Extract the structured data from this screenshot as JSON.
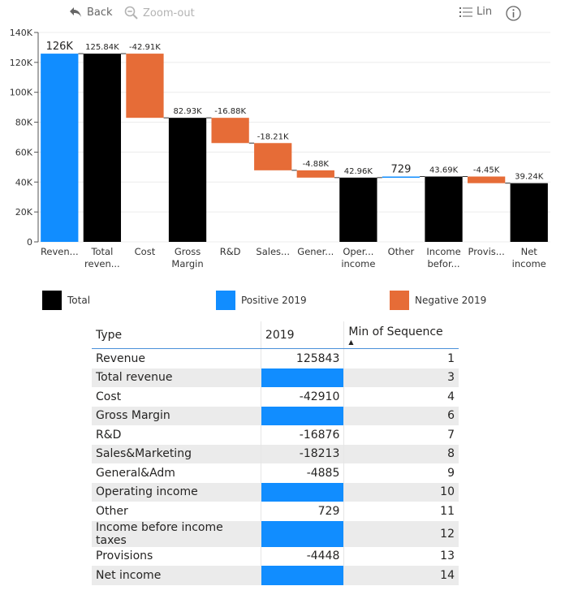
{
  "toolbar": {
    "back_label": "Back",
    "zoom_out_label": "Zoom-out",
    "scale_label": "Lin"
  },
  "chart_data": {
    "type": "bar",
    "subtype": "waterfall",
    "categories": [
      "Reven...",
      "Total reven...",
      "Cost",
      "Gross Margin",
      "R&D",
      "Sales...",
      "Gener...",
      "Oper... income",
      "Other",
      "Income befor...",
      "Provis...",
      "Net income"
    ],
    "category_lines": [
      [
        "Reven..."
      ],
      [
        "Total",
        "reven..."
      ],
      [
        "Cost"
      ],
      [
        "Gross",
        "Margin"
      ],
      [
        "R&D"
      ],
      [
        "Sales..."
      ],
      [
        "Gener..."
      ],
      [
        "Oper...",
        "income"
      ],
      [
        "Other"
      ],
      [
        "Income",
        "befor..."
      ],
      [
        "Provis..."
      ],
      [
        "Net",
        "income"
      ]
    ],
    "bars": [
      {
        "kind": "positive",
        "start": 0,
        "end": 125843,
        "label": "126K"
      },
      {
        "kind": "total",
        "start": 0,
        "end": 125843,
        "label": "125.84K"
      },
      {
        "kind": "negative",
        "start": 125843,
        "end": 82933,
        "label": "-42.91K"
      },
      {
        "kind": "total",
        "start": 0,
        "end": 82933,
        "label": "82.93K"
      },
      {
        "kind": "negative",
        "start": 82933,
        "end": 66057,
        "label": "-16.88K"
      },
      {
        "kind": "negative",
        "start": 66057,
        "end": 47844,
        "label": "-18.21K"
      },
      {
        "kind": "negative",
        "start": 47844,
        "end": 42959,
        "label": "-4.88K"
      },
      {
        "kind": "total",
        "start": 0,
        "end": 42959,
        "label": "42.96K"
      },
      {
        "kind": "positive",
        "start": 42959,
        "end": 43688,
        "label": "729"
      },
      {
        "kind": "total",
        "start": 0,
        "end": 43688,
        "label": "43.69K"
      },
      {
        "kind": "negative",
        "start": 43688,
        "end": 39240,
        "label": "-4.45K"
      },
      {
        "kind": "total",
        "start": 0,
        "end": 39240,
        "label": "39.24K"
      }
    ],
    "ylim": [
      0,
      140000
    ],
    "yticks": [
      0,
      20000,
      40000,
      60000,
      80000,
      100000,
      120000,
      140000
    ],
    "ytick_labels": [
      "0",
      "20K",
      "40K",
      "60K",
      "80K",
      "100K",
      "120K",
      "140K"
    ],
    "grid": true,
    "legend_position": "bottom",
    "legend": [
      {
        "name": "Total",
        "color": "#000000"
      },
      {
        "name": "Positive 2019",
        "color": "#118dff"
      },
      {
        "name": "Negative 2019",
        "color": "#e66c37"
      }
    ],
    "colors": {
      "total": "#000000",
      "positive": "#118dff",
      "negative": "#e66c37"
    }
  },
  "table": {
    "headers": [
      "Type",
      "2019",
      "Min of Sequence"
    ],
    "rows": [
      {
        "type": "Revenue",
        "value": "125843",
        "seq": "1",
        "blue": false
      },
      {
        "type": "Total revenue",
        "value": "",
        "seq": "3",
        "blue": true
      },
      {
        "type": "Cost",
        "value": "-42910",
        "seq": "4",
        "blue": false
      },
      {
        "type": "Gross Margin",
        "value": "",
        "seq": "6",
        "blue": true
      },
      {
        "type": "R&D",
        "value": "-16876",
        "seq": "7",
        "blue": false
      },
      {
        "type": "Sales&Marketing",
        "value": "-18213",
        "seq": "8",
        "blue": false
      },
      {
        "type": "General&Adm",
        "value": "-4885",
        "seq": "9",
        "blue": false
      },
      {
        "type": "Operating income",
        "value": "",
        "seq": "10",
        "blue": true
      },
      {
        "type": "Other",
        "value": "729",
        "seq": "11",
        "blue": false
      },
      {
        "type": "Income before income taxes",
        "value": "",
        "seq": "12",
        "blue": true
      },
      {
        "type": "Provisions",
        "value": "-4448",
        "seq": "13",
        "blue": false
      },
      {
        "type": "Net income",
        "value": "",
        "seq": "14",
        "blue": true
      }
    ]
  }
}
